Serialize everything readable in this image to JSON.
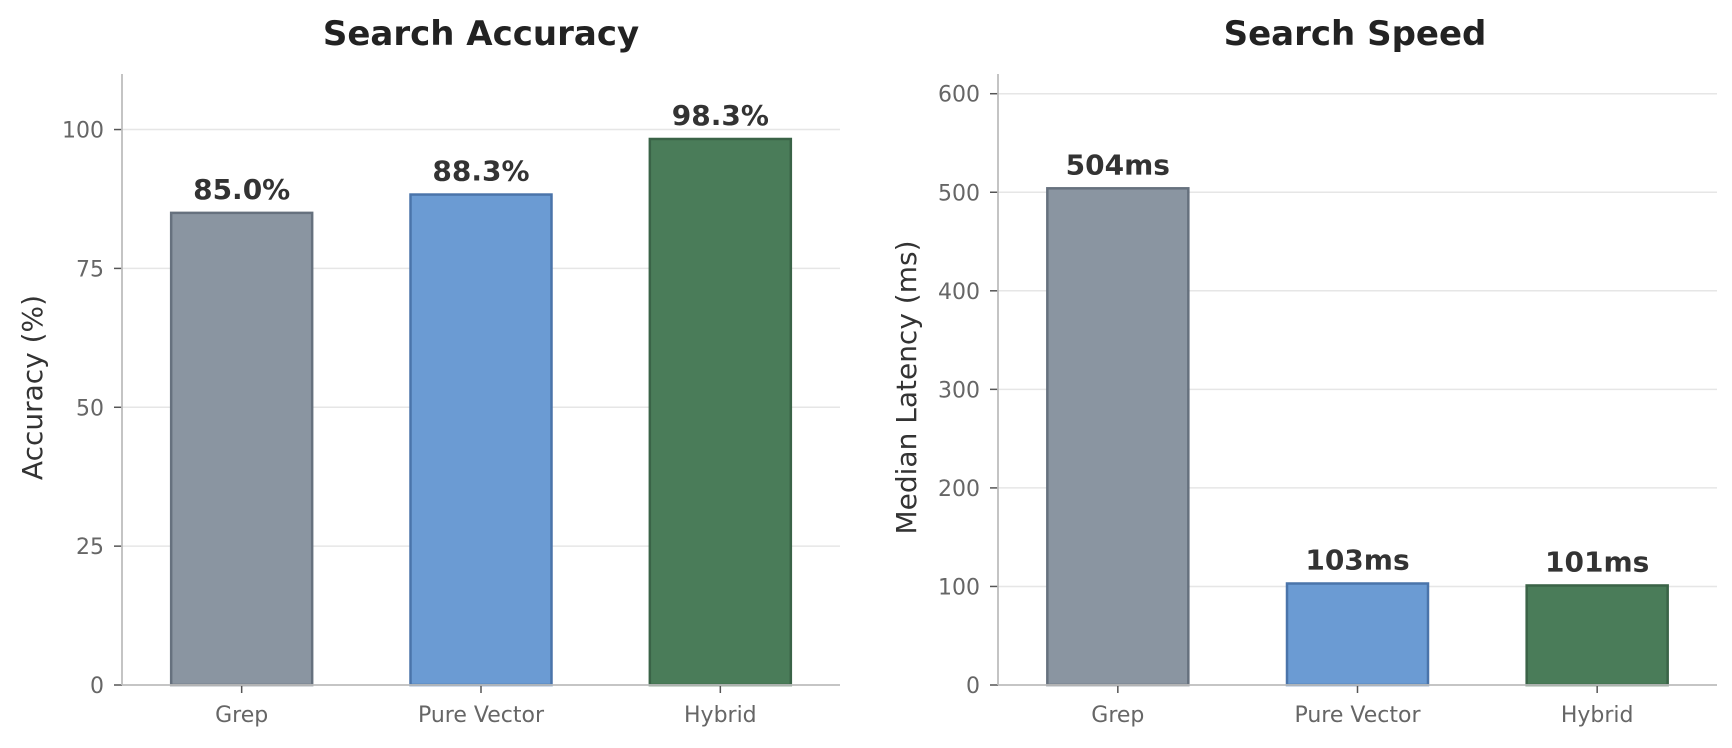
{
  "chart_data": [
    {
      "type": "bar",
      "title": "Search Accuracy",
      "xlabel": "",
      "ylabel": "Accuracy (%)",
      "categories": [
        "Grep",
        "Pure Vector",
        "Hybrid"
      ],
      "values": [
        85.0,
        88.3,
        98.3
      ],
      "value_labels": [
        "85.0%",
        "88.3%",
        "98.3%"
      ],
      "colors": [
        "#8a95a1",
        "#6b9bd3",
        "#4a7c59"
      ],
      "edge_colors": [
        "#66717e",
        "#4a74aa",
        "#3a6347"
      ],
      "ylim": [
        0,
        110
      ],
      "yticks": [
        0,
        25,
        50,
        75,
        100
      ],
      "grid": true
    },
    {
      "type": "bar",
      "title": "Search Speed",
      "xlabel": "",
      "ylabel": "Median Latency (ms)",
      "categories": [
        "Grep",
        "Pure Vector",
        "Hybrid"
      ],
      "values": [
        504,
        103,
        101
      ],
      "value_labels": [
        "504ms",
        "103ms",
        "101ms"
      ],
      "colors": [
        "#8a95a1",
        "#6b9bd3",
        "#4a7c59"
      ],
      "edge_colors": [
        "#66717e",
        "#4a74aa",
        "#3a6347"
      ],
      "ylim": [
        0,
        620
      ],
      "yticks": [
        0,
        100,
        200,
        300,
        400,
        500,
        600
      ],
      "grid": true
    }
  ]
}
